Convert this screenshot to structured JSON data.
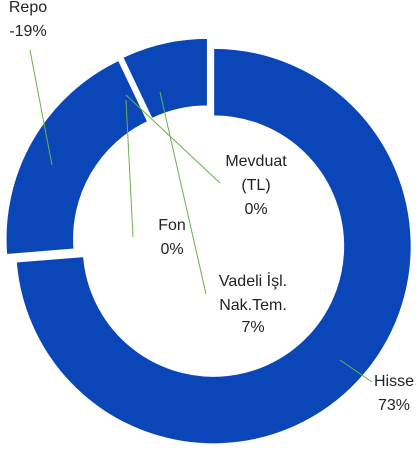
{
  "chart_data": {
    "type": "donut",
    "categories": [
      "Hisse",
      "Repo",
      "Mevduat (TL)",
      "Fon",
      "Vadeli İşl. Nak.Tem."
    ],
    "values": [
      73,
      -19,
      0,
      0,
      7
    ],
    "value_labels": [
      "73%",
      "-19%",
      "0%",
      "0%",
      "7%"
    ],
    "color": "#0b46b8",
    "leader_color": "#6ab04c"
  }
}
